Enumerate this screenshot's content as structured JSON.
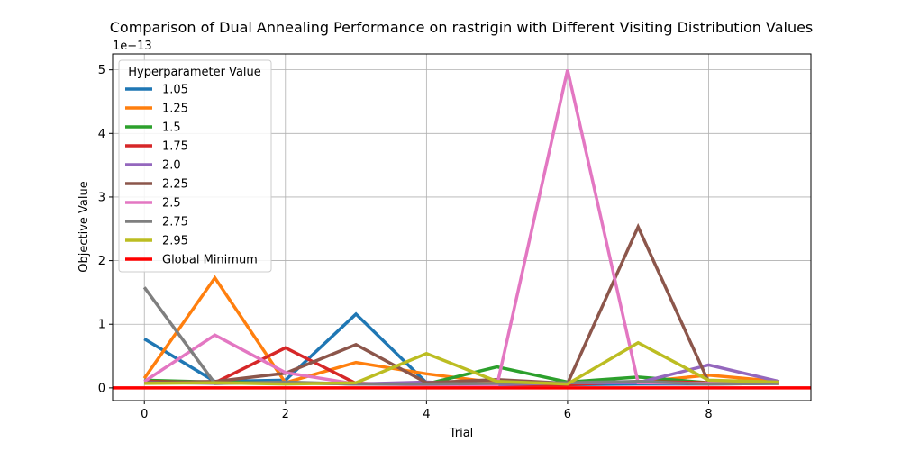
{
  "chart_data": {
    "type": "line",
    "title": "Comparison of Dual Annealing Performance on rastrigin with Different Visiting Distribution Values",
    "xlabel": "Trial",
    "ylabel": "Objective Value",
    "y_scale_label": "1e−13",
    "x": [
      0,
      1,
      2,
      3,
      4,
      5,
      6,
      7,
      8,
      9
    ],
    "xlim": [
      -0.45,
      9.45
    ],
    "ylim": [
      -0.2,
      5.25
    ],
    "x_ticks": [
      "0",
      "2",
      "4",
      "6",
      "8"
    ],
    "y_ticks": [
      "0",
      "1",
      "2",
      "3",
      "4",
      "5"
    ],
    "grid": true,
    "legend_title": "Hyperparameter Value",
    "legend_position": "top-left",
    "series": [
      {
        "name": "1.05",
        "color": "#1f77b4",
        "values": [
          0.77,
          0.1,
          0.12,
          1.16,
          0.08,
          0.05,
          0.05,
          0.06,
          0.06,
          0.07
        ]
      },
      {
        "name": "1.25",
        "color": "#ff7f0e",
        "values": [
          0.15,
          1.73,
          0.08,
          0.4,
          0.22,
          0.08,
          0.07,
          0.09,
          0.2,
          0.1
        ]
      },
      {
        "name": "1.5",
        "color": "#2ca02c",
        "values": [
          0.12,
          0.09,
          0.08,
          0.06,
          0.06,
          0.33,
          0.09,
          0.17,
          0.08,
          0.08
        ]
      },
      {
        "name": "1.75",
        "color": "#d62728",
        "values": [
          0.1,
          0.08,
          0.63,
          0.07,
          0.05,
          0.05,
          0.05,
          0.1,
          0.08,
          0.07
        ]
      },
      {
        "name": "2.0",
        "color": "#9467bd",
        "values": [
          0.09,
          0.07,
          0.08,
          0.06,
          0.09,
          0.05,
          0.08,
          0.08,
          0.36,
          0.1
        ]
      },
      {
        "name": "2.25",
        "color": "#8c564b",
        "values": [
          0.08,
          0.1,
          0.23,
          0.68,
          0.08,
          0.13,
          0.07,
          2.53,
          0.09,
          0.07
        ]
      },
      {
        "name": "2.5",
        "color": "#e377c2",
        "values": [
          0.1,
          0.83,
          0.24,
          0.06,
          0.05,
          0.04,
          5.0,
          0.08,
          0.07,
          0.07
        ]
      },
      {
        "name": "2.75",
        "color": "#7f7f7f",
        "values": [
          1.58,
          0.07,
          0.09,
          0.06,
          0.06,
          0.07,
          0.08,
          0.1,
          0.06,
          0.07
        ]
      },
      {
        "name": "2.95",
        "color": "#bcbd22",
        "values": [
          0.07,
          0.08,
          0.06,
          0.08,
          0.54,
          0.1,
          0.06,
          0.71,
          0.12,
          0.09
        ]
      },
      {
        "name": "Global Minimum",
        "color": "#ff0000",
        "values": [
          0,
          0,
          0,
          0,
          0,
          0,
          0,
          0,
          0,
          0
        ],
        "hline": true
      }
    ]
  }
}
